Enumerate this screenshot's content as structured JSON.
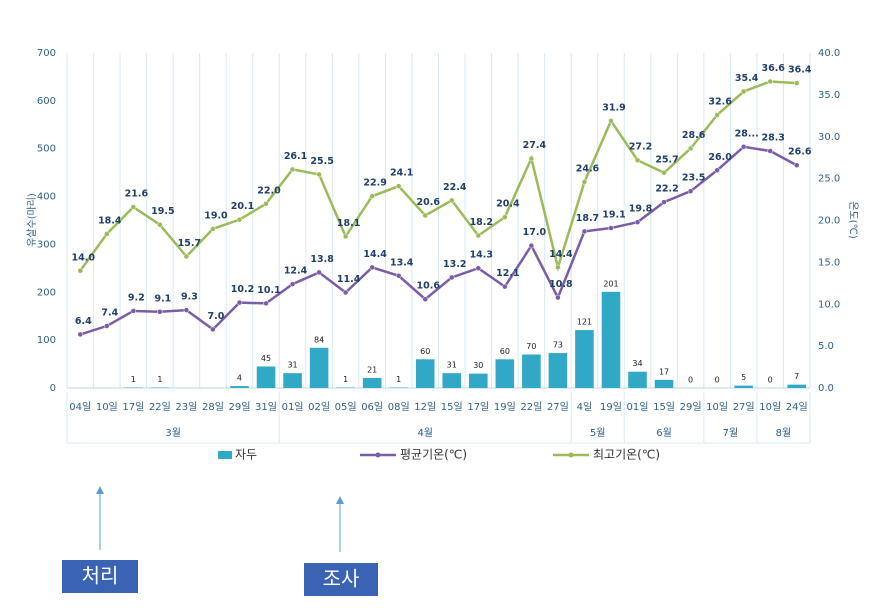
{
  "chart_data": {
    "type": "combo",
    "y_label": "유살수(마리)",
    "y2_label": "온도(℃)",
    "categories": [
      "04일",
      "10일",
      "17일",
      "22일",
      "23일",
      "28일",
      "29일",
      "31일",
      "01일",
      "02일",
      "05일",
      "06일",
      "08일",
      "12일",
      "15일",
      "17일",
      "19일",
      "22일",
      "27일",
      "4일",
      "19일",
      "01일",
      "15일",
      "29일",
      "10일",
      "27일",
      "10일",
      "24일"
    ],
    "x_groups": [
      {
        "label": "3월",
        "start": 0,
        "end": 7
      },
      {
        "label": "4월",
        "start": 8,
        "end": 18
      },
      {
        "label": "5월",
        "start": 19,
        "end": 20
      },
      {
        "label": "6월",
        "start": 21,
        "end": 23
      },
      {
        "label": "7월",
        "start": 24,
        "end": 25
      },
      {
        "label": "8월",
        "start": 26,
        "end": 27
      }
    ],
    "series": [
      {
        "name": "자두",
        "type": "bar",
        "color": "#31a9c6",
        "values": [
          null,
          null,
          1,
          1,
          null,
          null,
          4,
          45,
          31,
          84,
          1,
          21,
          1,
          60,
          31,
          30,
          60,
          70,
          73,
          121,
          201,
          34,
          17,
          0,
          0,
          5,
          0,
          7
        ]
      },
      {
        "name": "평균기온(℃)",
        "type": "line",
        "axis": "y2",
        "color": "#7a5ca8",
        "values": [
          6.4,
          7.4,
          9.2,
          9.1,
          9.3,
          7.0,
          10.2,
          10.1,
          12.4,
          13.8,
          11.4,
          14.4,
          13.4,
          10.6,
          13.2,
          14.3,
          12.1,
          17.0,
          10.8,
          18.7,
          19.1,
          19.8,
          22.2,
          23.5,
          26.0,
          28.8,
          28.3,
          26.6
        ],
        "value_labels": [
          "6.4",
          "7.4",
          "9.2",
          "9.1",
          "9.3",
          "7.0",
          "10.2",
          "10.1",
          "12.4",
          "13.8",
          "11.4",
          "14.4",
          "13.4",
          "10.6",
          "13.2",
          "14.3",
          "12.1",
          "17.0",
          "10.8",
          "18.7",
          "19.1",
          "19.8",
          "22.2",
          "23.5",
          "26.0",
          "28...",
          "28.3",
          "26.6"
        ]
      },
      {
        "name": "최고기온(℃)",
        "type": "line",
        "axis": "y2",
        "color": "#9bbb59",
        "values": [
          14.0,
          18.4,
          21.6,
          19.5,
          15.7,
          19.0,
          20.1,
          22.0,
          26.1,
          25.5,
          18.1,
          22.9,
          24.1,
          20.6,
          22.4,
          18.2,
          20.4,
          27.4,
          14.4,
          24.6,
          31.9,
          27.2,
          25.7,
          28.6,
          32.6,
          35.4,
          36.6,
          36.4
        ],
        "value_labels": [
          "14.0",
          "18.4",
          "21.6",
          "19.5",
          "15.7",
          "19.0",
          "20.1",
          "22.0",
          "26.1",
          "25.5",
          "18.1",
          "22.9",
          "24.1",
          "20.6",
          "22.4",
          "18.2",
          "20.4",
          "27.4",
          "14.4",
          "24.6",
          "31.9",
          "27.2",
          "25.7",
          "28.6",
          "32.6",
          "35.4",
          "36.6",
          "36.4"
        ]
      }
    ],
    "ylim": [
      0,
      700
    ],
    "yticks": [
      0,
      100,
      200,
      300,
      400,
      500,
      600,
      700
    ],
    "y2lim": [
      0,
      40
    ],
    "y2ticks": [
      {
        "value": 0,
        "label": "0.0"
      },
      {
        "value": 5,
        "label": "5.0"
      },
      {
        "value": 10,
        "label": "10.0"
      },
      {
        "value": 15,
        "label": "15.0"
      },
      {
        "value": 20,
        "label": "20.0"
      },
      {
        "value": 25,
        "label": "25.0"
      },
      {
        "value": 30,
        "label": "30.0"
      },
      {
        "value": 35,
        "label": "35.0"
      },
      {
        "value": 40,
        "label": "40.0"
      }
    ],
    "annotations": [
      "처리",
      "조사"
    ]
  }
}
